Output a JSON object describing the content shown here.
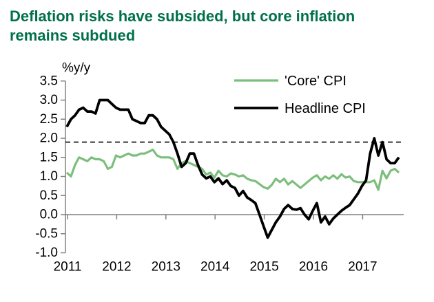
{
  "title": "Deflation risks have subsided, but core inflation remains subdued",
  "colors": {
    "title": "#00704B",
    "core_line": "#7CBE7C",
    "headline_line": "#000000",
    "axis": "#808080",
    "reference_line": "#000000"
  },
  "chart_data": {
    "type": "line",
    "y_axis_label": "%y/y",
    "ylim": [
      -1.0,
      3.5
    ],
    "y_ticks": [
      3.5,
      3.0,
      2.5,
      2.0,
      1.5,
      1.0,
      0.5,
      0.0,
      -0.5,
      -1.0
    ],
    "x_tick_labels": [
      "2011",
      "2012",
      "2013",
      "2014",
      "2015",
      "2016",
      "2017"
    ],
    "x_start": "2011-01",
    "frequency": "monthly",
    "reference_line_value": 1.9,
    "reference_line_style": "dashed",
    "grid": false,
    "legend_position": "top-right",
    "series": [
      {
        "name": "'Core' CPI",
        "color": "#7CBE7C",
        "values": [
          1.1,
          1.0,
          1.3,
          1.5,
          1.45,
          1.4,
          1.5,
          1.45,
          1.45,
          1.4,
          1.2,
          1.25,
          1.55,
          1.5,
          1.55,
          1.6,
          1.55,
          1.55,
          1.6,
          1.6,
          1.65,
          1.7,
          1.55,
          1.5,
          1.5,
          1.5,
          1.45,
          1.2,
          1.35,
          1.4,
          1.35,
          1.3,
          1.25,
          1.2,
          1.05,
          1.1,
          0.97,
          1.15,
          1.03,
          1.0,
          1.08,
          1.05,
          1.0,
          1.03,
          0.94,
          0.9,
          0.88,
          0.8,
          0.72,
          0.68,
          0.78,
          0.94,
          0.85,
          0.94,
          0.79,
          0.88,
          0.79,
          0.7,
          0.79,
          0.88,
          0.97,
          1.03,
          0.9,
          1.0,
          0.94,
          1.03,
          0.94,
          1.06,
          0.97,
          1.0,
          0.88,
          0.85,
          0.85,
          0.85,
          0.85,
          0.9,
          0.65,
          1.15,
          0.95,
          1.15,
          1.2,
          1.1
        ]
      },
      {
        "name": "Headline CPI",
        "color": "#000000",
        "values": [
          2.3,
          2.5,
          2.6,
          2.75,
          2.8,
          2.7,
          2.7,
          2.65,
          3.0,
          3.0,
          3.0,
          2.9,
          2.8,
          2.75,
          2.75,
          2.75,
          2.5,
          2.45,
          2.4,
          2.4,
          2.6,
          2.6,
          2.5,
          2.3,
          2.2,
          2.1,
          1.9,
          1.6,
          1.25,
          1.35,
          1.6,
          1.6,
          1.3,
          1.05,
          0.95,
          1.0,
          0.85,
          0.95,
          0.8,
          0.9,
          0.75,
          0.7,
          0.5,
          0.62,
          0.45,
          0.38,
          0.3,
          0.0,
          -0.3,
          -0.6,
          -0.4,
          -0.2,
          -0.05,
          0.15,
          0.25,
          0.15,
          0.13,
          0.17,
          0.0,
          -0.12,
          0.1,
          0.3,
          -0.2,
          -0.05,
          -0.25,
          -0.1,
          0.0,
          0.1,
          0.18,
          0.25,
          0.4,
          0.55,
          0.75,
          0.9,
          1.6,
          2.0,
          1.55,
          1.9,
          1.45,
          1.35,
          1.35,
          1.5
        ]
      }
    ]
  }
}
